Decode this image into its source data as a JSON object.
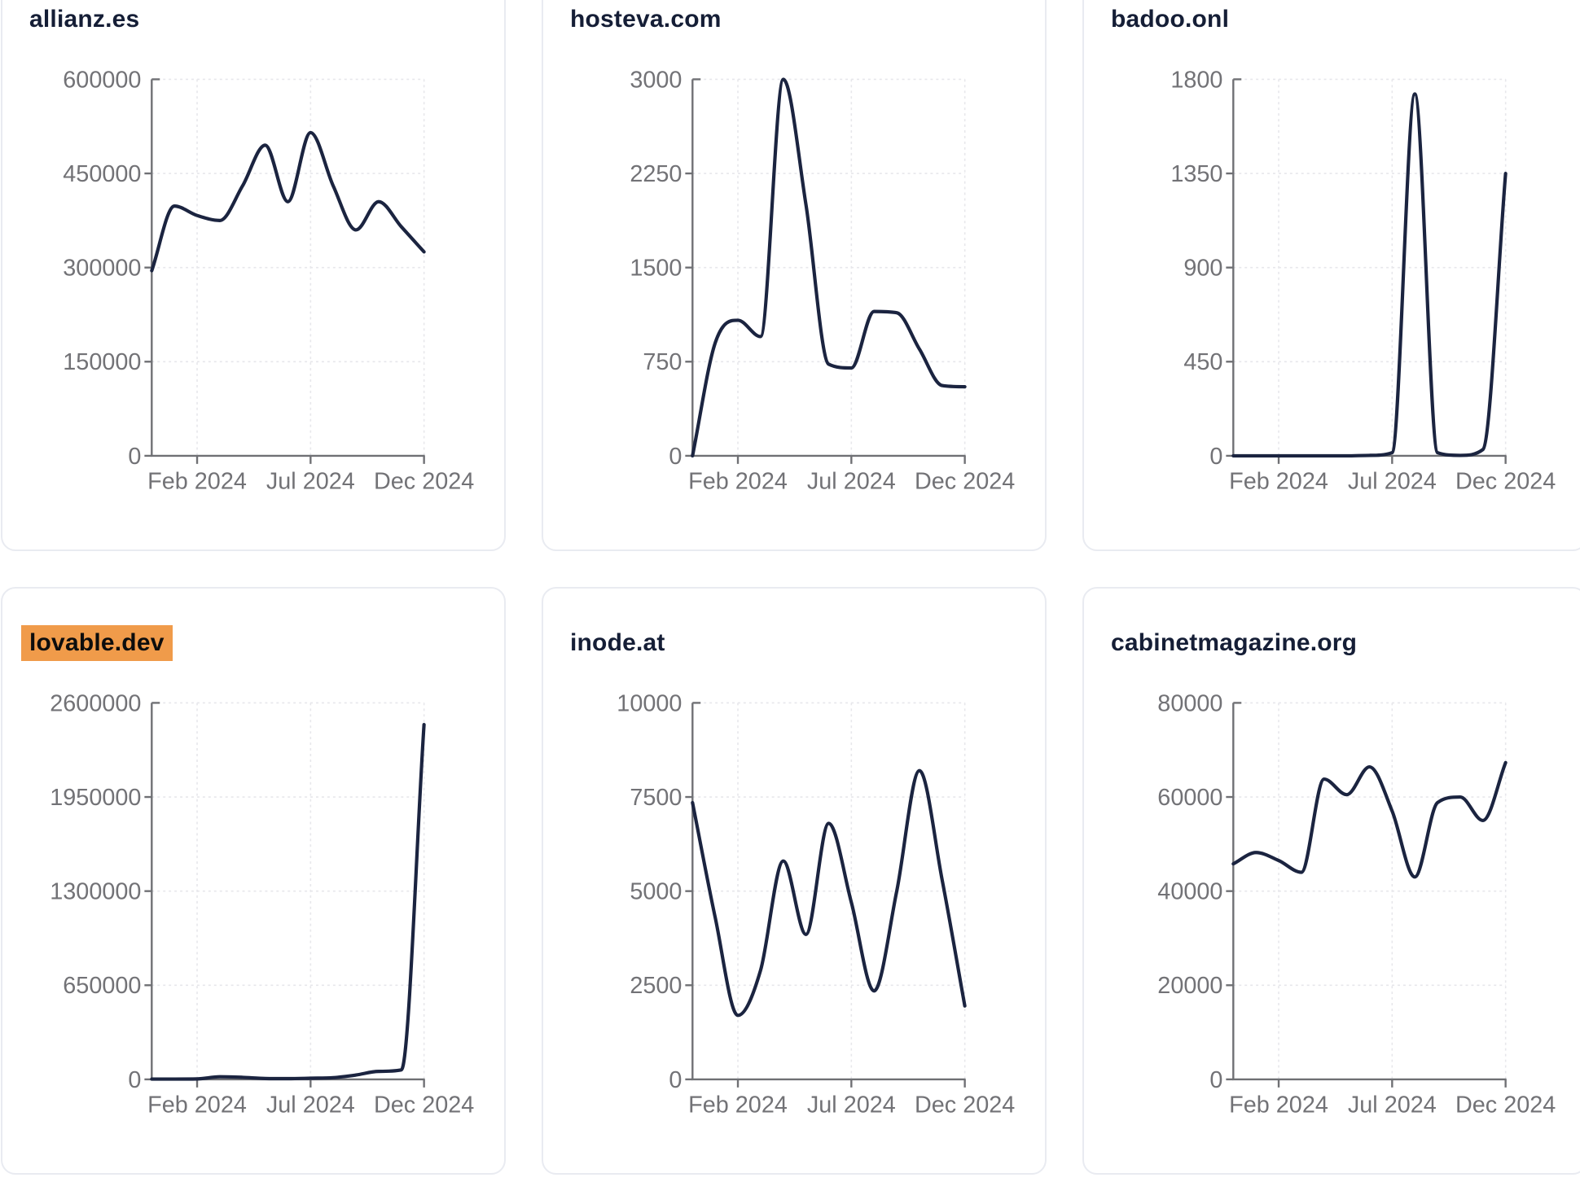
{
  "ui": {
    "page_bg": "#ffffff",
    "card_bg": "#ffffff",
    "card_border": "#e9ebf1",
    "title_color": "#151e36",
    "highlight_bg": "#f09b4a",
    "highlight_text": "#0d0d0d",
    "axis_color": "#6f7074",
    "tick_label_color": "#727276",
    "grid_color": "#e7e7eb",
    "line_color": "#1b2440"
  },
  "chart_data": [
    {
      "type": "line",
      "title": "allianz.es",
      "highlighted": false,
      "x": [
        "Dec 2023",
        "Jan 2024",
        "Feb 2024",
        "Mar 2024",
        "Apr 2024",
        "May 2024",
        "Jun 2024",
        "Jul 2024",
        "Aug 2024",
        "Sep 2024",
        "Oct 2024",
        "Nov 2024",
        "Dec 2024"
      ],
      "x_tick_labels": [
        "Feb 2024",
        "Jul 2024",
        "Dec 2024"
      ],
      "values": [
        295000,
        398000,
        383000,
        375000,
        430000,
        495000,
        405000,
        515000,
        430000,
        360000,
        405000,
        365000,
        325000
      ],
      "ylim": [
        0,
        600000
      ],
      "y_ticks": [
        0,
        150000,
        300000,
        450000,
        600000
      ],
      "grid": true,
      "legend": false
    },
    {
      "type": "line",
      "title": "hosteva.com",
      "highlighted": false,
      "x": [
        "Dec 2023",
        "Jan 2024",
        "Feb 2024",
        "Mar 2024",
        "Apr 2024",
        "May 2024",
        "Jun 2024",
        "Jul 2024",
        "Aug 2024",
        "Sep 2024",
        "Oct 2024",
        "Nov 2024",
        "Dec 2024"
      ],
      "x_tick_labels": [
        "Feb 2024",
        "Jul 2024",
        "Dec 2024"
      ],
      "values": [
        0,
        900,
        1080,
        950,
        3000,
        2000,
        730,
        700,
        1150,
        1140,
        850,
        560,
        550
      ],
      "ylim": [
        0,
        3000
      ],
      "y_ticks": [
        0,
        750,
        1500,
        2250,
        3000
      ],
      "grid": true,
      "legend": false
    },
    {
      "type": "line",
      "title": "badoo.onl",
      "highlighted": false,
      "x": [
        "Dec 2023",
        "Jan 2024",
        "Feb 2024",
        "Mar 2024",
        "Apr 2024",
        "May 2024",
        "Jun 2024",
        "Jul 2024",
        "Aug 2024",
        "Sep 2024",
        "Oct 2024",
        "Nov 2024",
        "Dec 2024"
      ],
      "x_tick_labels": [
        "Feb 2024",
        "Jul 2024",
        "Dec 2024"
      ],
      "values": [
        0,
        0,
        0,
        0,
        0,
        0,
        2,
        15,
        1730,
        15,
        2,
        30,
        1350
      ],
      "ylim": [
        0,
        1800
      ],
      "y_ticks": [
        0,
        450,
        900,
        1350,
        1800
      ],
      "grid": true,
      "legend": false
    },
    {
      "type": "line",
      "title": "lovable.dev",
      "highlighted": true,
      "x": [
        "Dec 2023",
        "Jan 2024",
        "Feb 2024",
        "Mar 2024",
        "Apr 2024",
        "May 2024",
        "Jun 2024",
        "Jul 2024",
        "Aug 2024",
        "Sep 2024",
        "Oct 2024",
        "Nov 2024",
        "Dec 2024"
      ],
      "x_tick_labels": [
        "Feb 2024",
        "Jul 2024",
        "Dec 2024"
      ],
      "values": [
        2000,
        2000,
        3000,
        18000,
        14000,
        6000,
        5000,
        8000,
        12000,
        30000,
        55000,
        65000,
        2450000
      ],
      "ylim": [
        0,
        2600000
      ],
      "y_ticks": [
        0,
        650000,
        1300000,
        1950000,
        2600000
      ],
      "grid": true,
      "legend": false
    },
    {
      "type": "line",
      "title": "inode.at",
      "highlighted": false,
      "x": [
        "Dec 2023",
        "Jan 2024",
        "Feb 2024",
        "Mar 2024",
        "Apr 2024",
        "May 2024",
        "Jun 2024",
        "Jul 2024",
        "Aug 2024",
        "Sep 2024",
        "Oct 2024",
        "Nov 2024",
        "Dec 2024"
      ],
      "x_tick_labels": [
        "Feb 2024",
        "Jul 2024",
        "Dec 2024"
      ],
      "values": [
        7350,
        4300,
        1700,
        2900,
        5800,
        3850,
        6800,
        4700,
        2350,
        5000,
        8200,
        5300,
        1950
      ],
      "ylim": [
        0,
        10000
      ],
      "y_ticks": [
        0,
        2500,
        5000,
        7500,
        10000
      ],
      "grid": true,
      "legend": false
    },
    {
      "type": "line",
      "title": "cabinetmagazine.org",
      "highlighted": false,
      "x": [
        "Dec 2023",
        "Jan 2024",
        "Feb 2024",
        "Mar 2024",
        "Apr 2024",
        "May 2024",
        "Jun 2024",
        "Jul 2024",
        "Aug 2024",
        "Sep 2024",
        "Oct 2024",
        "Nov 2024",
        "Dec 2024"
      ],
      "x_tick_labels": [
        "Feb 2024",
        "Jul 2024",
        "Dec 2024"
      ],
      "values": [
        45800,
        48200,
        46500,
        44000,
        63800,
        60500,
        66400,
        57000,
        43000,
        58800,
        60000,
        55000,
        67300
      ],
      "ylim": [
        0,
        80000
      ],
      "y_ticks": [
        0,
        20000,
        40000,
        60000,
        80000
      ],
      "grid": true,
      "legend": false
    }
  ]
}
